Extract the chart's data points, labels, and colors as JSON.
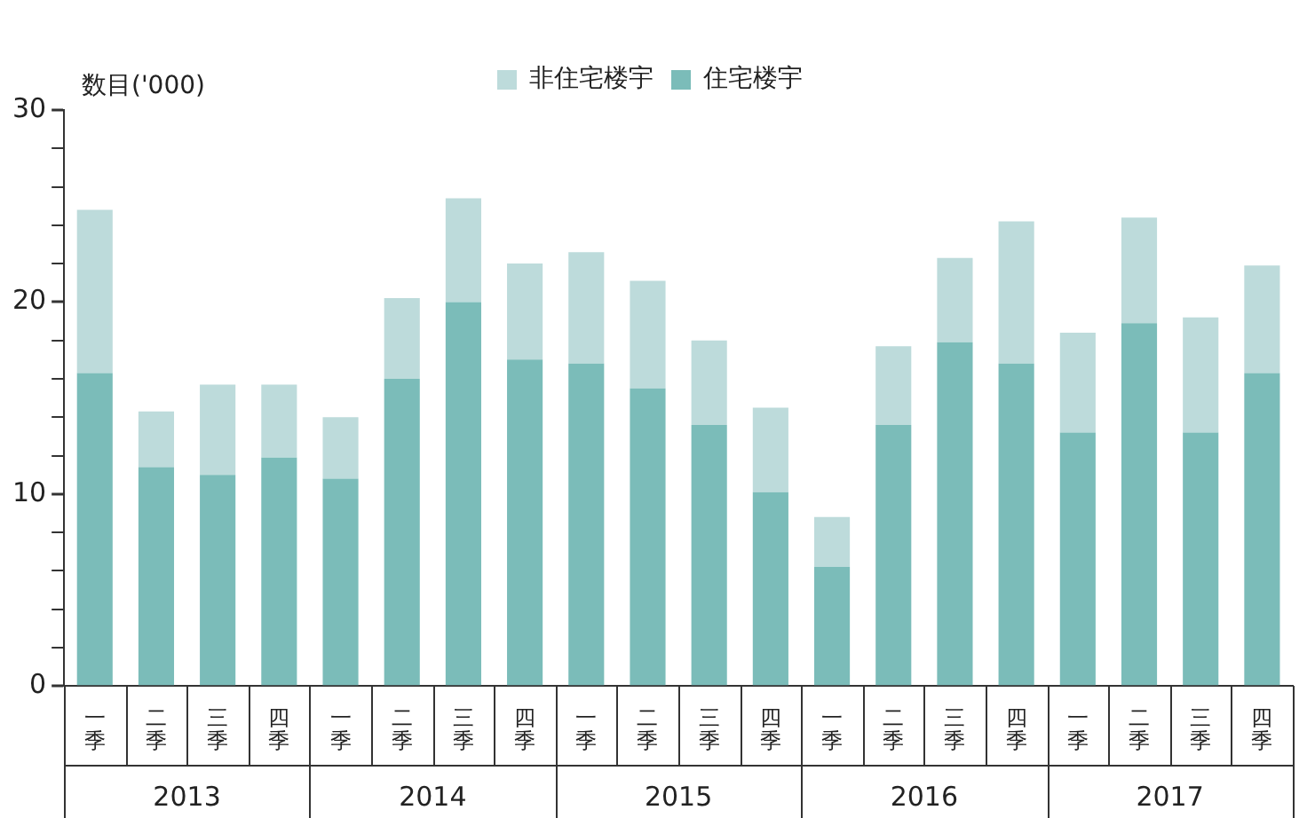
{
  "chart_data": {
    "type": "bar",
    "stacked": true,
    "ylabel": "数目('000)",
    "categories": [
      "一季",
      "二季",
      "三季",
      "四季",
      "一季",
      "二季",
      "三季",
      "四季",
      "一季",
      "二季",
      "三季",
      "四季",
      "一季",
      "二季",
      "三季",
      "四季",
      "一季",
      "二季",
      "三季",
      "四季"
    ],
    "annotations": [
      "2013",
      "2014",
      "2015",
      "2016",
      "2017"
    ],
    "series": [
      {
        "name": "住宅楼宇",
        "color": "#7bbcb9",
        "values": [
          16.3,
          11.4,
          11.0,
          11.9,
          10.8,
          16.0,
          20.0,
          17.0,
          16.8,
          15.5,
          13.6,
          10.1,
          6.2,
          13.6,
          17.9,
          16.8,
          13.2,
          18.9,
          13.2,
          16.3
        ]
      },
      {
        "name": "非住宅楼宇",
        "color": "#bddbdb",
        "values": [
          8.5,
          2.9,
          4.7,
          3.8,
          3.2,
          4.2,
          5.4,
          5.0,
          5.8,
          5.6,
          4.4,
          4.4,
          2.6,
          4.1,
          4.4,
          7.4,
          5.2,
          5.5,
          6.0,
          5.6
        ]
      }
    ],
    "ylim": [
      0,
      30
    ],
    "yticks": [
      0,
      {
        "value": 2,
        "label": null
      },
      {
        "value": 4,
        "label": null
      },
      {
        "value": 6,
        "label": null
      },
      {
        "value": 8,
        "label": null
      },
      10,
      {
        "value": 12,
        "label": null
      },
      {
        "value": 14,
        "label": null
      },
      {
        "value": 16,
        "label": null
      },
      {
        "value": 18,
        "label": null
      },
      20,
      {
        "value": 22,
        "label": null
      },
      {
        "value": 24,
        "label": null
      },
      {
        "value": 26,
        "label": null
      },
      {
        "value": 28,
        "label": null
      },
      30
    ],
    "grid": false,
    "legend": "top"
  }
}
